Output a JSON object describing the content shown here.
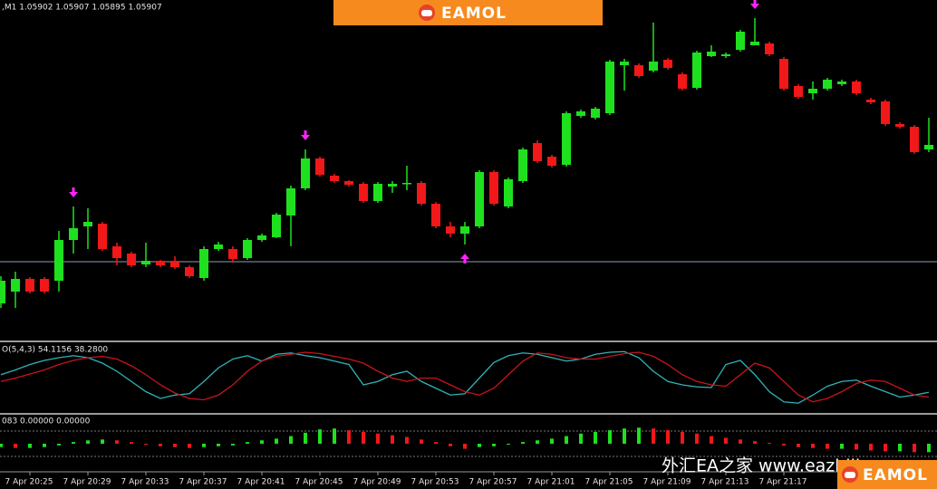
{
  "banner": "EAMOL",
  "footer_watermark": {
    "text": "外汇EA之家 www.eazhijia.com",
    "logo": "EAMOL"
  },
  "chart_data": [
    {
      "type": "candlestick",
      "title": ",M1 1.05902 1.05907 1.05895 1.05907",
      "categories": [
        null,
        null,
        "7 Apr 20:25",
        null,
        null,
        null,
        "7 Apr 20:29",
        null,
        null,
        null,
        "7 Apr 20:33",
        null,
        null,
        null,
        "7 Apr 20:37",
        null,
        null,
        null,
        "7 Apr 20:41",
        null,
        null,
        null,
        "7 Apr 20:45",
        null,
        null,
        null,
        "7 Apr 20:49",
        null,
        null,
        null,
        "7 Apr 20:53",
        null,
        null,
        null,
        "7 Apr 20:57",
        null,
        null,
        null,
        "7 Apr 21:01",
        null,
        null,
        null,
        "7 Apr 21:05",
        null,
        null,
        null,
        "7 Apr 21:09",
        null,
        null,
        null,
        "7 Apr 21:13",
        null,
        null,
        null,
        "7 Apr 21:17",
        null,
        null,
        null,
        null,
        null,
        null,
        null,
        null,
        null,
        null
      ],
      "open": [
        1.05665,
        1.05678,
        1.05692,
        1.05692,
        1.0569,
        1.05735,
        1.0575,
        1.05753,
        1.05728,
        1.0572,
        1.05708,
        1.05712,
        1.05712,
        1.05705,
        1.05693,
        1.05725,
        1.05725,
        1.05715,
        1.05735,
        1.05738,
        1.05762,
        1.05792,
        1.05825,
        1.05806,
        1.058,
        1.05797,
        1.05778,
        1.05794,
        1.05797,
        1.05798,
        1.05775,
        1.0575,
        1.05742,
        1.0575,
        1.0581,
        1.05772,
        1.058,
        1.05842,
        1.05827,
        1.05818,
        1.05872,
        1.0587,
        1.05875,
        1.05928,
        1.05928,
        1.05922,
        1.05934,
        1.05918,
        1.05903,
        1.05938,
        1.05938,
        1.05945,
        1.0595,
        1.05952,
        1.05935,
        1.05905,
        1.05897,
        1.05902,
        1.05907,
        1.0591,
        1.0589,
        1.05888,
        1.05863,
        1.0586,
        1.05835
      ],
      "high": [
        1.05695,
        1.057,
        1.05694,
        1.05694,
        1.05745,
        1.05772,
        1.0577,
        1.05755,
        1.05732,
        1.05722,
        1.05732,
        1.05713,
        1.05717,
        1.05707,
        1.05728,
        1.05733,
        1.05728,
        1.05737,
        1.05742,
        1.05765,
        1.05795,
        1.05835,
        1.05827,
        1.05808,
        1.05801,
        1.05799,
        1.05799,
        1.058,
        1.05817,
        1.058,
        1.05777,
        1.05755,
        1.05755,
        1.05812,
        1.05812,
        1.05804,
        1.05837,
        1.05845,
        1.05829,
        1.05877,
        1.05879,
        1.05882,
        1.05934,
        1.05935,
        1.0593,
        1.05975,
        1.05936,
        1.0592,
        1.05944,
        1.0595,
        1.05942,
        1.05967,
        1.0598,
        1.05954,
        1.05937,
        1.05907,
        1.0591,
        1.05914,
        1.05912,
        1.05912,
        1.05892,
        1.0589,
        1.05865,
        1.05862,
        1.0587
      ],
      "low": [
        1.0566,
        1.0566,
        1.05676,
        1.05676,
        1.05678,
        1.0572,
        1.05725,
        1.05723,
        1.05707,
        1.05705,
        1.05705,
        1.05705,
        1.05703,
        1.05693,
        1.0569,
        1.05723,
        1.0571,
        1.05713,
        1.05733,
        1.05737,
        1.05728,
        1.0579,
        1.05805,
        1.05798,
        1.05794,
        1.05776,
        1.05776,
        1.05787,
        1.0579,
        1.05773,
        1.05748,
        1.05738,
        1.0573,
        1.05748,
        1.05773,
        1.0577,
        1.05798,
        1.0582,
        1.05815,
        1.05816,
        1.0587,
        1.05868,
        1.05873,
        1.059,
        1.05914,
        1.0592,
        1.05923,
        1.059,
        1.05901,
        1.05937,
        1.05936,
        1.05943,
        1.0595,
        1.05938,
        1.059,
        1.05891,
        1.0589,
        1.059,
        1.05905,
        1.05895,
        1.05885,
        1.05861,
        1.05858,
        1.0583,
        1.05832
      ],
      "close": [
        1.0569,
        1.05692,
        1.05678,
        1.05678,
        1.05735,
        1.05748,
        1.05755,
        1.05725,
        1.05715,
        1.05707,
        1.05712,
        1.05707,
        1.05705,
        1.05695,
        1.05725,
        1.0573,
        1.05714,
        1.05735,
        1.0574,
        1.05763,
        1.05792,
        1.05825,
        1.05807,
        1.058,
        1.05796,
        1.05778,
        1.05797,
        1.05797,
        1.05798,
        1.05775,
        1.0575,
        1.05742,
        1.0575,
        1.0581,
        1.05775,
        1.05802,
        1.05835,
        1.05822,
        1.05817,
        1.05875,
        1.05877,
        1.0588,
        1.05932,
        1.05932,
        1.05916,
        1.05932,
        1.05925,
        1.05902,
        1.05942,
        1.05943,
        1.0594,
        1.05965,
        1.05954,
        1.0594,
        1.05902,
        1.05893,
        1.05902,
        1.05912,
        1.0591,
        1.05897,
        1.05887,
        1.05863,
        1.0586,
        1.05832,
        1.0584
      ],
      "up_color": "#1fe01f",
      "down_color": "#f01818",
      "hline": 1.05711,
      "hline_color": "#8e9cb0",
      "signals": [
        {
          "index": 5,
          "direction": "down"
        },
        {
          "index": 21,
          "direction": "down"
        },
        {
          "index": 32,
          "direction": "up"
        },
        {
          "index": 52,
          "direction": "down"
        }
      ],
      "signal_color": "#ff22ff",
      "ylim": [
        1.05625,
        1.06
      ]
    },
    {
      "type": "line",
      "title": "O(5,4,3) 54.1156 38.2800",
      "series": [
        {
          "color": "#2fb3b8",
          "values": [
            55,
            62,
            70,
            76,
            80,
            83,
            80,
            72,
            60,
            45,
            30,
            20,
            25,
            27,
            45,
            65,
            78,
            83,
            75,
            85,
            87,
            83,
            80,
            75,
            70,
            40,
            45,
            55,
            60,
            45,
            35,
            25,
            27,
            50,
            73,
            83,
            87,
            85,
            80,
            75,
            78,
            85,
            88,
            89,
            80,
            60,
            45,
            40,
            37,
            36,
            70,
            76,
            55,
            30,
            15,
            13,
            25,
            38,
            45,
            47,
            38,
            30,
            22,
            25,
            29
          ]
        },
        {
          "color": "#c8141c",
          "values": [
            45,
            50,
            56,
            62,
            70,
            76,
            80,
            82,
            78,
            68,
            55,
            40,
            28,
            20,
            18,
            25,
            40,
            60,
            75,
            82,
            85,
            88,
            86,
            82,
            78,
            72,
            60,
            50,
            45,
            50,
            50,
            40,
            30,
            25,
            35,
            55,
            75,
            87,
            85,
            80,
            78,
            78,
            82,
            86,
            88,
            82,
            70,
            55,
            45,
            40,
            38,
            55,
            72,
            65,
            45,
            25,
            15,
            20,
            30,
            42,
            47,
            45,
            35,
            25,
            22
          ]
        }
      ],
      "ylim": [
        0,
        100
      ]
    },
    {
      "type": "bar",
      "title": "083 0.00000 0.00000",
      "values": [
        -4,
        -5,
        -5,
        -4,
        -2,
        2,
        4,
        5,
        4,
        2,
        -1,
        -3,
        -4,
        -5,
        -4,
        -3,
        -2,
        2,
        4,
        6,
        9,
        13,
        17,
        18,
        16,
        14,
        12,
        10,
        8,
        5,
        2,
        -3,
        -6,
        -4,
        -3,
        -1,
        2,
        4,
        6,
        9,
        12,
        14,
        16,
        18,
        19,
        18,
        16,
        14,
        12,
        9,
        7,
        5,
        3,
        1,
        -2,
        -4,
        -5,
        -6,
        -6,
        -7,
        -8,
        -9,
        -9,
        -10,
        -10
      ],
      "up_color": "#1fe01f",
      "down_color": "#f01818",
      "ylim": [
        -30,
        30
      ]
    }
  ]
}
